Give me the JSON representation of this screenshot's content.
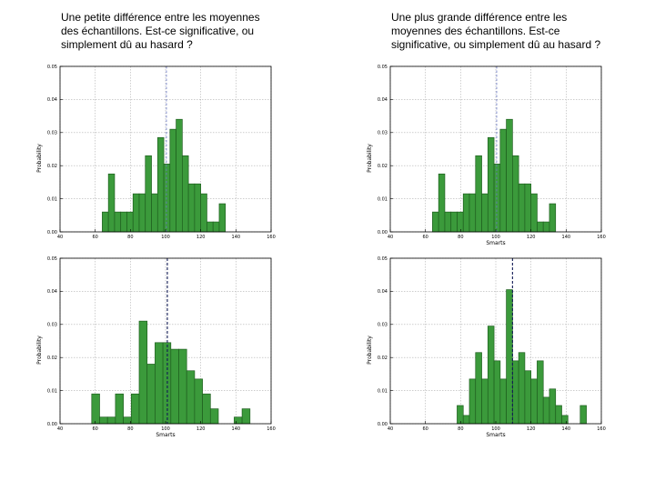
{
  "captions": {
    "left": "Une petite différence entre les moyennes des échantillons. Est-ce significative, ou simplement dû au hasard ?",
    "right": "Une plus grande différence entre les moyennes des échantillons. Est-ce significative, ou simplement dû au hasard ?"
  },
  "colors": {
    "bar_fill": "#3b9a3b",
    "bar_stroke": "#1f5f1f",
    "grid": "#b0b0b0",
    "mean_line": "#1a2a80"
  },
  "chart_data": [
    {
      "type": "bar",
      "position": "top-left",
      "xlabel": "",
      "ylabel": "Probability",
      "xlim": [
        40,
        160
      ],
      "ylim": [
        0,
        0.05
      ],
      "xticks": [
        "40",
        "60",
        "80",
        "100",
        "120",
        "140",
        "160"
      ],
      "yticks": [
        "0.00",
        "0.01",
        "0.02",
        "0.03",
        "0.04",
        "0.05"
      ],
      "bin_width": 3.5,
      "bin_starts": [
        64,
        67.5,
        71,
        74.5,
        78,
        81.5,
        85,
        88.5,
        92,
        95.5,
        99,
        102.5,
        106,
        109.5,
        113,
        116.5,
        120,
        123.5,
        127,
        130.5
      ],
      "values": [
        0.006,
        0.0175,
        0.006,
        0.006,
        0.006,
        0.0115,
        0.0115,
        0.023,
        0.0115,
        0.0285,
        0.0205,
        0.031,
        0.034,
        0.023,
        0.0145,
        0.0145,
        0.0115,
        0.003,
        0.003,
        0.0085
      ],
      "mean_line": 100.5,
      "mean_style": "dashed-light",
      "grid": true
    },
    {
      "type": "bar",
      "position": "top-right",
      "xlabel": "Smarts",
      "ylabel": "Probability",
      "xlim": [
        40,
        160
      ],
      "ylim": [
        0,
        0.05
      ],
      "xticks": [
        "40",
        "60",
        "80",
        "100",
        "120",
        "140",
        "160"
      ],
      "yticks": [
        "0.00",
        "0.01",
        "0.02",
        "0.03",
        "0.04",
        "0.05"
      ],
      "bin_width": 3.5,
      "bin_starts": [
        64,
        67.5,
        71,
        74.5,
        78,
        81.5,
        85,
        88.5,
        92,
        95.5,
        99,
        102.5,
        106,
        109.5,
        113,
        116.5,
        120,
        123.5,
        127,
        130.5
      ],
      "values": [
        0.006,
        0.0175,
        0.006,
        0.006,
        0.006,
        0.0115,
        0.0115,
        0.023,
        0.0115,
        0.0285,
        0.0205,
        0.031,
        0.034,
        0.023,
        0.0145,
        0.0145,
        0.0115,
        0.003,
        0.003,
        0.0085
      ],
      "mean_line": 100.5,
      "mean_style": "dashed-light",
      "grid": true
    },
    {
      "type": "bar",
      "position": "bottom-left",
      "xlabel": "Smarts",
      "ylabel": "Probability",
      "xlim": [
        40,
        160
      ],
      "ylim": [
        0,
        0.05
      ],
      "xticks": [
        "40",
        "60",
        "80",
        "100",
        "120",
        "140",
        "160"
      ],
      "yticks": [
        "0.00",
        "0.01",
        "0.02",
        "0.03",
        "0.04",
        "0.05"
      ],
      "bin_width": 4.5,
      "bin_starts": [
        58,
        62.5,
        67,
        71.5,
        76,
        80.5,
        85,
        89.5,
        94,
        98.5,
        103,
        107.5,
        112,
        116.5,
        121,
        125.5,
        130,
        134.5,
        139,
        143.5
      ],
      "values": [
        0.009,
        0.002,
        0.002,
        0.009,
        0.002,
        0.009,
        0.031,
        0.018,
        0.0245,
        0.0245,
        0.0225,
        0.0225,
        0.016,
        0.0135,
        0.009,
        0.0045,
        0,
        0,
        0.002,
        0.0045
      ],
      "mean_line": 101,
      "mean_style": "dashed-dark",
      "grid": true
    },
    {
      "type": "bar",
      "position": "bottom-right",
      "xlabel": "Smarts",
      "ylabel": "Probability",
      "xlim": [
        40,
        160
      ],
      "ylim": [
        0,
        0.05
      ],
      "xticks": [
        "40",
        "60",
        "80",
        "100",
        "120",
        "140",
        "160"
      ],
      "yticks": [
        "0.00",
        "0.01",
        "0.02",
        "0.03",
        "0.04",
        "0.05"
      ],
      "bin_width": 3.5,
      "bin_starts": [
        78,
        81.5,
        85,
        88.5,
        92,
        95.5,
        99,
        102.5,
        106,
        109.5,
        113,
        116.5,
        120,
        123.5,
        127,
        130.5,
        134,
        137.5,
        141,
        144.5,
        148
      ],
      "values": [
        0.0055,
        0.0025,
        0.0135,
        0.0215,
        0.0135,
        0.0295,
        0.019,
        0.0135,
        0.0405,
        0.019,
        0.0215,
        0.016,
        0.0135,
        0.019,
        0.008,
        0.0105,
        0.0055,
        0.0025,
        0,
        0,
        0.0055
      ],
      "mean_line": 109.5,
      "mean_style": "dashed-dark",
      "grid": true
    }
  ]
}
